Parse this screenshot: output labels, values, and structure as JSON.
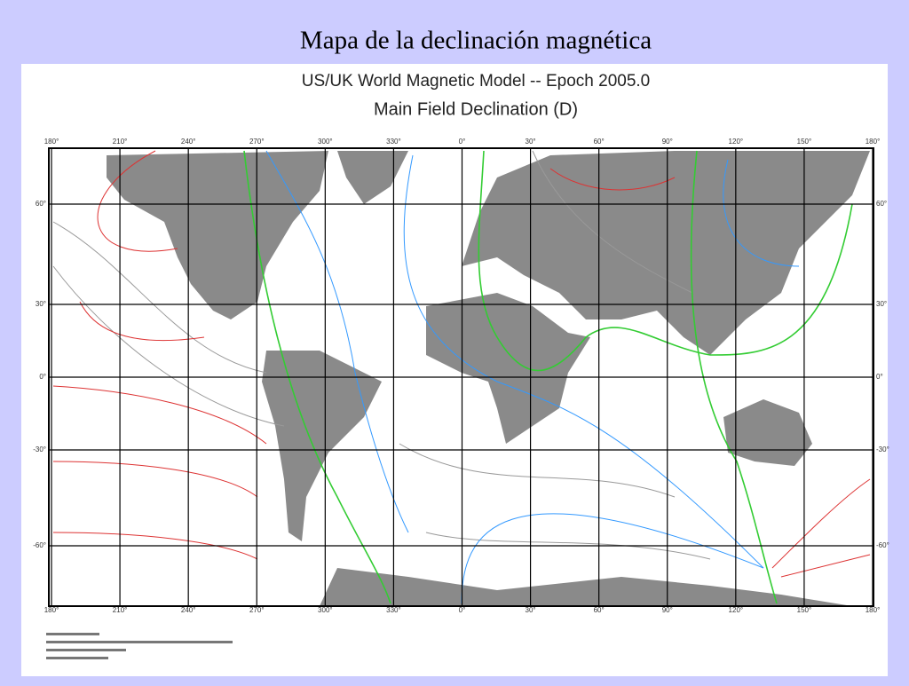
{
  "header": {
    "title": "Mapa de la declinación magnética"
  },
  "map": {
    "title": "US/UK World Magnetic Model  --  Epoch 2005.0",
    "subtitle": "Main Field Declination (D)",
    "lon_labels": [
      "180°",
      "210°",
      "240°",
      "270°",
      "300°",
      "330°",
      "0°",
      "30°",
      "60°",
      "90°",
      "120°",
      "150°",
      "180°"
    ],
    "lat_labels": [
      "60°",
      "30°",
      "0°",
      "-30°",
      "-60°"
    ]
  }
}
